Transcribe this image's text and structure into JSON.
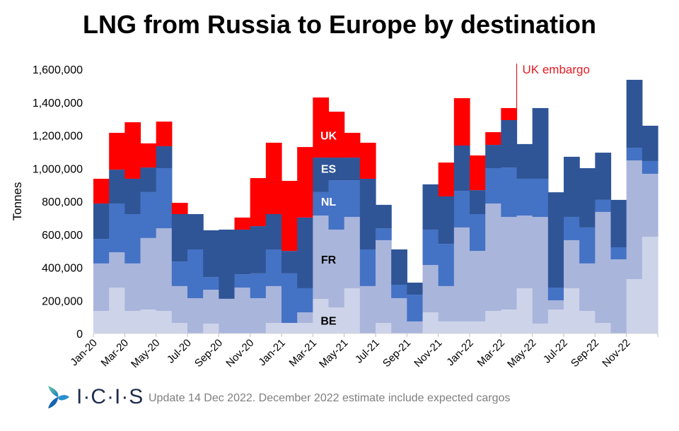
{
  "chart_data": {
    "type": "bar",
    "stacked": true,
    "title": "LNG from Russia to Europe by destination",
    "xlabel": "",
    "ylabel": "Tonnes",
    "ylim": [
      0,
      1600000
    ],
    "yticks": [
      0,
      200000,
      400000,
      600000,
      800000,
      1000000,
      1200000,
      1400000,
      1600000
    ],
    "ytick_labels": [
      "0",
      "200,000",
      "400,000",
      "600,000",
      "800,000",
      "1,000,000",
      "1,200,000",
      "1,400,000",
      "1,600,000"
    ],
    "categories": [
      "Jan-20",
      "Feb-20",
      "Mar-20",
      "Apr-20",
      "May-20",
      "Jun-20",
      "Jul-20",
      "Aug-20",
      "Sep-20",
      "Oct-20",
      "Nov-20",
      "Dec-20",
      "Jan-21",
      "Feb-21",
      "Mar-21",
      "Apr-21",
      "May-21",
      "Jun-21",
      "Jul-21",
      "Aug-21",
      "Sep-21",
      "Oct-21",
      "Nov-21",
      "Dec-21",
      "Jan-22",
      "Feb-22",
      "Mar-22",
      "Apr-22",
      "May-22",
      "Jun-22",
      "Jul-22",
      "Aug-22",
      "Sep-22",
      "Oct-22",
      "Nov-22",
      "Dec-22"
    ],
    "xtick_labels": [
      "Jan-20",
      "Mar-20",
      "May-20",
      "Jul-20",
      "Sep-20",
      "Nov-20",
      "Jan-21",
      "Mar-21",
      "May-21",
      "Jul-21",
      "Sep-21",
      "Nov-21",
      "Jan-22",
      "Mar-22",
      "May-22",
      "Jul-22",
      "Sep-22",
      "Nov-22"
    ],
    "series": [
      {
        "name": "BE",
        "color": "#cdd3e9",
        "values": [
          137000,
          278000,
          137000,
          145000,
          137000,
          64000,
          0,
          60000,
          0,
          0,
          0,
          64000,
          64000,
          64000,
          209000,
          158000,
          274000,
          0,
          64000,
          0,
          0,
          128000,
          73000,
          73000,
          73000,
          137000,
          145000,
          274000,
          60000,
          145000,
          274000,
          137000,
          64000,
          0,
          329000,
          586000
        ]
      },
      {
        "name": "FR",
        "color": "#a9b5db",
        "values": [
          287000,
          214000,
          287000,
          433000,
          500000,
          223000,
          214000,
          205000,
          210000,
          278000,
          214000,
          223000,
          0,
          64000,
          505000,
          471000,
          432000,
          287000,
          501000,
          214000,
          73000,
          287000,
          214000,
          569000,
          427000,
          650000,
          561000,
          440000,
          646000,
          56000,
          291000,
          287000,
          672000,
          449000,
          719000,
          381000
        ]
      },
      {
        "name": "NL",
        "color": "#4472c4",
        "values": [
          149000,
          295000,
          299000,
          278000,
          364000,
          149000,
          295000,
          77000,
          0,
          81000,
          150000,
          222000,
          300000,
          146000,
          142000,
          299000,
          222000,
          222000,
          72000,
          81000,
          162000,
          214000,
          256000,
          222000,
          223000,
          214000,
          299000,
          223000,
          231000,
          77000,
          141000,
          218000,
          73000,
          73000,
          77000,
          77000
        ]
      },
      {
        "name": "ES",
        "color": "#2f5597",
        "values": [
          214000,
          205000,
          214000,
          149000,
          133000,
          287000,
          214000,
          283000,
          419000,
          270000,
          286000,
          214000,
          136000,
          428000,
          209000,
          137000,
          137000,
          428000,
          142000,
          214000,
          73000,
          274000,
          287000,
          274000,
          145000,
          141000,
          287000,
          210000,
          428000,
          577000,
          364000,
          359000,
          286000,
          287000,
          411000,
          214000
        ]
      },
      {
        "name": "UK",
        "color": "#ff0000",
        "values": [
          150000,
          223000,
          342000,
          146000,
          149000,
          68000,
          0,
          0,
          0,
          73000,
          291000,
          432000,
          424000,
          427000,
          364000,
          278000,
          150000,
          218000,
          0,
          0,
          0,
          0,
          205000,
          287000,
          210000,
          77000,
          73000,
          0,
          0,
          0,
          0,
          0,
          0,
          0,
          0,
          0
        ]
      }
    ],
    "series_labels": [
      {
        "name": "UK",
        "anchor": "Mar-21",
        "value": 1200000,
        "color": "#ffffff"
      },
      {
        "name": "ES",
        "anchor": "Mar-21",
        "value": 1000000,
        "color": "#ffffff"
      },
      {
        "name": "NL",
        "anchor": "Mar-21",
        "value": 800000,
        "color": "#ffffff"
      },
      {
        "name": "FR",
        "anchor": "Mar-21",
        "value": 450000,
        "color": "#000000"
      },
      {
        "name": "BE",
        "anchor": "Mar-21",
        "value": 80000,
        "color": "#000000"
      }
    ],
    "annotations": [
      {
        "text": "UK embargo",
        "at": "Apr-22",
        "color": "#e31b23"
      }
    ],
    "grid": false,
    "legend": "none (inline labels)"
  },
  "footer": {
    "logo_text": "I·C·I·S",
    "note": "Update 14 Dec 2022. December 2022 estimate include expected cargos"
  }
}
